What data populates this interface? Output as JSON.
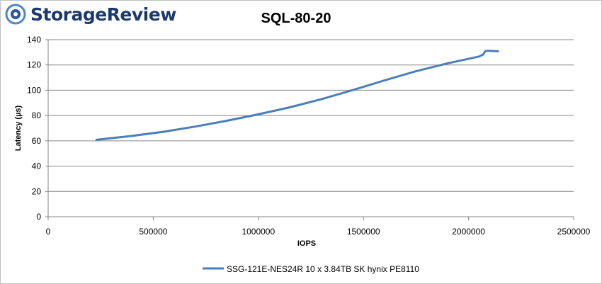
{
  "brand": {
    "name": "StorageReview",
    "icon": "storagereview-logo-icon",
    "accent": "#1a3a6e"
  },
  "chart_data": {
    "type": "line",
    "title": "SQL-80-20",
    "xlabel": "IOPS",
    "ylabel": "Latency (µs)",
    "xlim": [
      0,
      2500000
    ],
    "ylim": [
      0,
      140
    ],
    "x_ticks": [
      0,
      500000,
      1000000,
      1500000,
      2000000,
      2500000
    ],
    "x_tick_labels": [
      "0",
      "500000",
      "1000000",
      "1500000",
      "2000000",
      "2500000"
    ],
    "y_ticks": [
      0,
      20,
      40,
      60,
      80,
      100,
      120,
      140
    ],
    "y_tick_labels": [
      "0",
      "20",
      "40",
      "60",
      "80",
      "100",
      "120",
      "140"
    ],
    "grid": "horizontal",
    "legend_position": "bottom",
    "series": [
      {
        "name": "SSG-121E-NES24R 10 x 3.84TB SK hynix PE8110",
        "color": "#4a7ebb",
        "x": [
          230000,
          400000,
          550000,
          700000,
          850000,
          1000000,
          1150000,
          1300000,
          1450000,
          1600000,
          1750000,
          1900000,
          2050000,
          2070000,
          2080000,
          2090000,
          2110000,
          2140000
        ],
        "y": [
          60.8,
          63.9,
          67.2,
          71.3,
          75.9,
          81.0,
          86.5,
          92.9,
          100.2,
          107.8,
          115.0,
          121.3,
          126.7,
          128.3,
          131.0,
          131.2,
          131.1,
          130.8
        ]
      }
    ]
  }
}
